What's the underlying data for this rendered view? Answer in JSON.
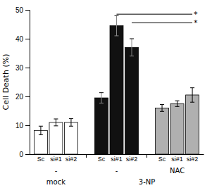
{
  "chart_data": {
    "type": "bar",
    "categories": [
      "Sc",
      "si#1",
      "si#2",
      "Sc",
      "si#1",
      "si#2",
      "Sc",
      "si#1",
      "si#2"
    ],
    "values": [
      8.2,
      11.0,
      11.0,
      19.5,
      44.5,
      37.0,
      16.0,
      17.5,
      20.5
    ],
    "errors": [
      1.5,
      1.2,
      1.3,
      1.8,
      3.5,
      3.0,
      1.2,
      1.0,
      2.5
    ],
    "colors": [
      "#ffffff",
      "#ffffff",
      "#ffffff",
      "#111111",
      "#111111",
      "#111111",
      "#b0b0b0",
      "#b0b0b0",
      "#b0b0b0"
    ],
    "ylabel": "Cell Death (%)",
    "ylim": [
      0,
      50
    ],
    "yticks": [
      0,
      10,
      20,
      30,
      40,
      50
    ],
    "group_labels": [
      {
        "text": "-",
        "bars": [
          0,
          1,
          2
        ]
      },
      {
        "text": "-",
        "bars": [
          3,
          4,
          5
        ]
      },
      {
        "text": "NAC",
        "bars": [
          6,
          7,
          8
        ]
      }
    ],
    "group_titles": [
      {
        "text": "mock",
        "bars": [
          0,
          1,
          2
        ]
      },
      {
        "text": "3-NP",
        "bars": [
          3,
          4,
          5,
          6,
          7,
          8
        ]
      }
    ],
    "annotations": [
      {
        "text": "*",
        "y": 48.5,
        "from": 4,
        "to": 8
      },
      {
        "text": "*",
        "y": 45.5,
        "from": 5,
        "to": 8
      }
    ]
  }
}
